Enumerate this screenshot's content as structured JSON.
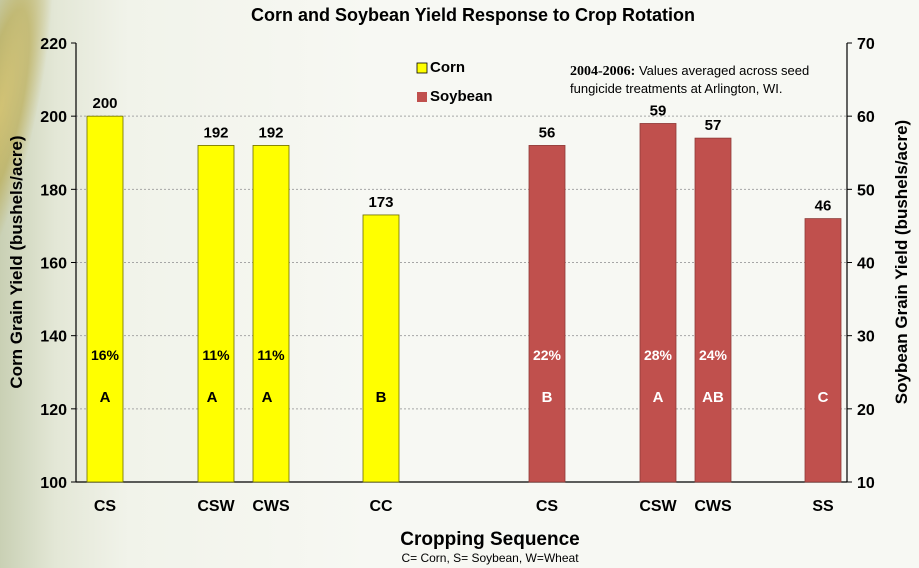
{
  "chart_data": {
    "type": "bar",
    "title": "Corn and Soybean Yield Response to Crop Rotation",
    "xlabel": "Cropping Sequence",
    "footnote": "C= Corn, S= Soybean, W=Wheat",
    "ylabel_left": "Corn Grain Yield (bushels/acre)",
    "ylabel_right": "Soybean Grain Yield (bushels/acre)",
    "ylim_left": [
      100,
      220
    ],
    "ylim_right": [
      10,
      70
    ],
    "yticks_left": [
      "100",
      "120",
      "140",
      "160",
      "180",
      "200",
      "220"
    ],
    "yticks_right": [
      "10",
      "20",
      "30",
      "40",
      "50",
      "60",
      "70"
    ],
    "grid": true,
    "legend_position": "top-center",
    "note_bold": "2004-2006:",
    "note_line1": " Values averaged across seed",
    "note_line2": "fungicide treatments at Arlington,  WI.",
    "series": [
      {
        "name": "Corn",
        "axis": "left",
        "color": "#ffff00",
        "categories": [
          "CS",
          "CSW",
          "CWS",
          "CC"
        ],
        "values": [
          200,
          192,
          192,
          173
        ],
        "labels": [
          "200",
          "192",
          "192",
          "173"
        ],
        "percents": [
          "16%",
          "11%",
          "11%",
          ""
        ],
        "letters": [
          "A",
          "A",
          "A",
          "B"
        ]
      },
      {
        "name": "Soybean",
        "axis": "right",
        "color": "#c0504d",
        "categories": [
          "CS",
          "CSW",
          "CWS",
          "SS"
        ],
        "values": [
          56,
          59,
          57,
          46
        ],
        "labels": [
          "56",
          "59",
          "57",
          "46"
        ],
        "percents": [
          "22%",
          "28%",
          "24%",
          ""
        ],
        "letters": [
          "B",
          "A",
          "AB",
          "C"
        ]
      }
    ]
  }
}
